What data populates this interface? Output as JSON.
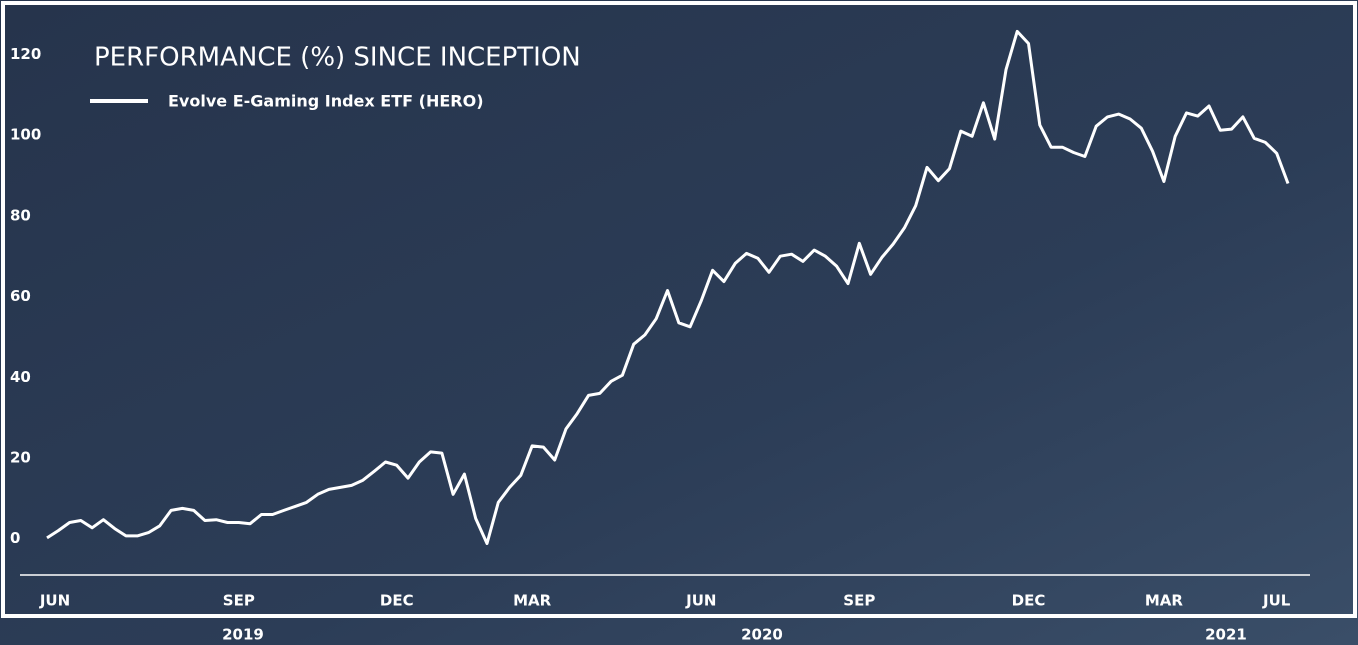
{
  "chart_data": {
    "type": "line",
    "title": "PERFORMANCE (%) SINCE INCEPTION",
    "categories": [
      "JUN",
      null,
      null,
      null,
      null,
      null,
      null,
      null,
      null,
      null,
      null,
      null,
      null,
      null,
      null,
      null,
      null,
      "SEP",
      null,
      null,
      null,
      null,
      null,
      null,
      null,
      null,
      null,
      null,
      null,
      null,
      null,
      "DEC",
      null,
      null,
      null,
      null,
      null,
      null,
      null,
      null,
      null,
      null,
      null,
      "MAR",
      null,
      null,
      null,
      null,
      null,
      null,
      null,
      null,
      null,
      null,
      null,
      null,
      null,
      null,
      "JUN",
      null,
      null,
      null,
      null,
      null,
      null,
      null,
      null,
      null,
      null,
      null,
      null,
      null,
      "SEP",
      null,
      null,
      null,
      null,
      null,
      null,
      null,
      null,
      null,
      null,
      null,
      null,
      null,
      null,
      "DEC",
      null,
      null,
      null,
      null,
      null,
      null,
      null,
      null,
      null,
      null,
      null,
      "MAR",
      null,
      null,
      null,
      null,
      null,
      null,
      null,
      null,
      null,
      "JUL",
      null
    ],
    "x_group_labels": [
      "2019",
      "2020",
      "2021"
    ],
    "series": [
      {
        "name": "Evolve E-Gaming Index ETF (HERO)",
        "color": "#ffffff",
        "values": [
          0.2,
          2,
          4,
          4.5,
          2.7,
          4.7,
          2.5,
          0.7,
          0.7,
          1.5,
          3.2,
          7,
          7.5,
          7,
          4.5,
          4.7,
          4,
          4,
          3.7,
          6,
          6,
          7,
          8,
          9,
          11,
          12.2,
          12.7,
          13.2,
          14.5,
          16.7,
          19,
          18.2,
          15,
          19,
          21.5,
          21.2,
          11,
          16,
          5,
          -1.2,
          9,
          12.7,
          15.7,
          23,
          22.7,
          19.5,
          27.2,
          31,
          35.5,
          36,
          39,
          40.5,
          48.2,
          50.5,
          54.5,
          61.5,
          53.5,
          52.5,
          59,
          66.5,
          63.7,
          68.2,
          70.7,
          69.5,
          66,
          70,
          70.5,
          68.7,
          71.5,
          70,
          67.5,
          63.2,
          73.2,
          65.5,
          69.7,
          73,
          77,
          82.5,
          92,
          88.7,
          91.7,
          101,
          99.7,
          108,
          99,
          116.2,
          125.7,
          122.7,
          102.5,
          97,
          97,
          95.7,
          94.7,
          102.2,
          104.5,
          105.2,
          104,
          101.7,
          96,
          88.5,
          99.7,
          105.5,
          104.7,
          107.2,
          101.2,
          101.5,
          104.5,
          99.2,
          98.2,
          95.5,
          88
        ]
      }
    ],
    "ylim": [
      -9,
      131
    ],
    "yticks": [
      0,
      20,
      40,
      60,
      80,
      100,
      120
    ]
  }
}
